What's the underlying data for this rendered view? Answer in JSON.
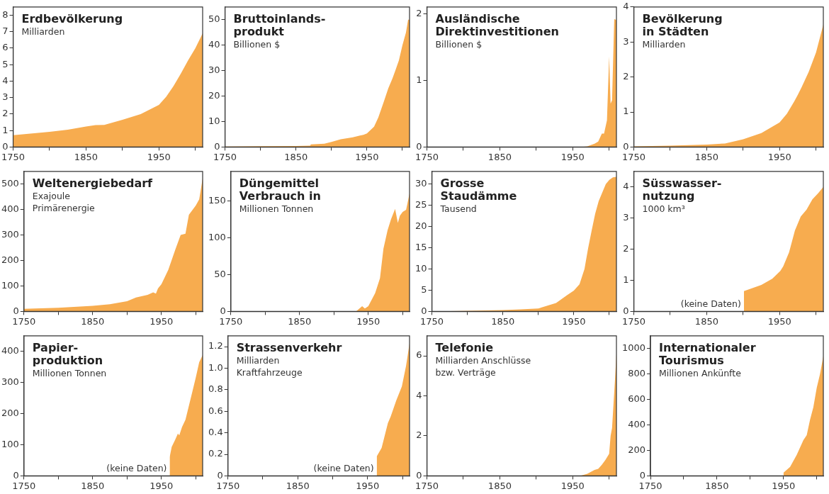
{
  "chart_data": [
    {
      "type": "area",
      "title": "Erdbevölkerung",
      "subtitle": "Milliarden",
      "xlim": [
        1750,
        2010
      ],
      "xticks": [
        1750,
        {
          "value": 1800,
          "label": null
        },
        1850,
        {
          "value": 1900,
          "label": null
        },
        1950,
        {
          "value": 2000,
          "label": null
        }
      ],
      "ylim": [
        0,
        8.5
      ],
      "yticks": [
        0,
        1,
        2,
        3,
        4,
        5,
        6,
        7,
        8
      ],
      "series": [
        {
          "color": "#f7ac4f",
          "x": [
            1750,
            1800,
            1825,
            1850,
            1863,
            1875,
            1900,
            1925,
            1950,
            1960,
            1970,
            1980,
            1990,
            2000,
            2010
          ],
          "values": [
            0.72,
            0.92,
            1.05,
            1.24,
            1.33,
            1.34,
            1.65,
            2.0,
            2.55,
            3.05,
            3.7,
            4.45,
            5.25,
            6.0,
            6.9
          ]
        }
      ]
    },
    {
      "type": "area",
      "title": "Bruttoinlands-\nprodukt",
      "subtitle": "Billionen $",
      "xlim": [
        1750,
        2010
      ],
      "xticks": [
        1750,
        {
          "value": 1800,
          "label": null
        },
        1850,
        {
          "value": 1900,
          "label": null
        },
        1950,
        {
          "value": 2000,
          "label": null
        }
      ],
      "ylim": [
        0,
        55
      ],
      "yticks": [
        0,
        10,
        20,
        30,
        40,
        50
      ],
      "series": [
        {
          "color": "#f7ac4f",
          "x": [
            1750,
            1800,
            1850,
            1870,
            1871,
            1890,
            1900,
            1913,
            1930,
            1945,
            1950,
            1960,
            1966,
            1974,
            1980,
            1986,
            1990,
            1995,
            2000,
            2005,
            2008,
            2010
          ],
          "values": [
            0.2,
            0.3,
            0.4,
            0.5,
            1.0,
            1.3,
            2.0,
            3.0,
            3.8,
            4.8,
            5.3,
            8,
            11.6,
            18,
            23,
            27,
            30,
            34,
            40,
            45,
            50,
            50
          ]
        }
      ]
    },
    {
      "type": "area",
      "title": "Ausländische\nDirektinvestitionen",
      "subtitle": "Billionen $",
      "xlim": [
        1750,
        2010
      ],
      "xticks": [
        1750,
        {
          "value": 1800,
          "label": null
        },
        1850,
        {
          "value": 1900,
          "label": null
        },
        1950,
        {
          "value": 2000,
          "label": null
        }
      ],
      "ylim": [
        0,
        2.1
      ],
      "yticks": [
        0,
        1,
        2
      ],
      "series": [
        {
          "color": "#f7ac4f",
          "x": [
            1750,
            1960,
            1970,
            1980,
            1985,
            1990,
            1993,
            1997,
            2000,
            2002,
            2004,
            2007,
            2010
          ],
          "values": [
            0,
            0,
            0.01,
            0.05,
            0.08,
            0.2,
            0.2,
            0.4,
            1.36,
            0.65,
            0.7,
            1.92,
            1.9
          ]
        }
      ]
    },
    {
      "type": "area",
      "title": "Bevölkerung\nin Städten",
      "subtitle": "Milliarden",
      "xlim": [
        1750,
        2010
      ],
      "xticks": [
        1750,
        {
          "value": 1800,
          "label": null
        },
        1850,
        {
          "value": 1900,
          "label": null
        },
        1950,
        {
          "value": 2000,
          "label": null
        }
      ],
      "ylim": [
        0,
        4
      ],
      "yticks": [
        0,
        1,
        2,
        3,
        4
      ],
      "series": [
        {
          "color": "#f7ac4f",
          "x": [
            1750,
            1800,
            1850,
            1875,
            1900,
            1925,
            1950,
            1960,
            1970,
            1975,
            1980,
            1990,
            2000,
            2010
          ],
          "values": [
            0.02,
            0.04,
            0.07,
            0.1,
            0.22,
            0.4,
            0.7,
            0.95,
            1.3,
            1.49,
            1.7,
            2.15,
            2.7,
            3.5
          ]
        }
      ]
    },
    {
      "type": "area",
      "title": "Weltenergiebedarf",
      "subtitle": "Exajoule\nPrimärenergie",
      "xlim": [
        1750,
        2010
      ],
      "xticks": [
        1750,
        {
          "value": 1800,
          "label": null
        },
        1850,
        {
          "value": 1900,
          "label": null
        },
        1950,
        {
          "value": 2000,
          "label": null
        }
      ],
      "ylim": [
        0,
        550
      ],
      "yticks": [
        0,
        100,
        200,
        300,
        400,
        500
      ],
      "series": [
        {
          "color": "#f7ac4f",
          "x": [
            1750,
            1800,
            1850,
            1875,
            1900,
            1913,
            1930,
            1938,
            1942,
            1945,
            1950,
            1960,
            1970,
            1978,
            1985,
            1990,
            2000,
            2005,
            2010
          ],
          "values": [
            10,
            14,
            22,
            28,
            40,
            55,
            65,
            75,
            70,
            90,
            107,
            163,
            241,
            300,
            305,
            380,
            416,
            440,
            522
          ]
        }
      ]
    },
    {
      "type": "area",
      "title": "Düngemittel\nVerbrauch in",
      "subtitle": "Millionen Tonnen",
      "xlim": [
        1750,
        2010
      ],
      "xticks": [
        1750,
        {
          "value": 1800,
          "label": null
        },
        1850,
        {
          "value": 1900,
          "label": null
        },
        1950,
        {
          "value": 2000,
          "label": null
        }
      ],
      "ylim": [
        0,
        190
      ],
      "yticks": [
        0,
        50,
        100,
        150
      ],
      "series": [
        {
          "color": "#f7ac4f",
          "x": [
            1750,
            1932,
            1941,
            1945,
            1950,
            1960,
            1967,
            1972,
            1978,
            1983,
            1989,
            1993,
            1996,
            2000,
            2005,
            2010
          ],
          "values": [
            0,
            0,
            7,
            4,
            7,
            25,
            45,
            85,
            110,
            125,
            139,
            120,
            130,
            135,
            138,
            160
          ]
        }
      ]
    },
    {
      "type": "area",
      "title": "Grosse\nStaudämme",
      "subtitle": "Tausend",
      "xlim": [
        1750,
        2010
      ],
      "xticks": [
        1750,
        {
          "value": 1800,
          "label": null
        },
        1850,
        {
          "value": 1900,
          "label": null
        },
        1950,
        {
          "value": 2000,
          "label": null
        }
      ],
      "ylim": [
        0,
        33
      ],
      "yticks": [
        0,
        5,
        10,
        15,
        20,
        25,
        30
      ],
      "series": [
        {
          "color": "#f7ac4f",
          "x": [
            1750,
            1850,
            1875,
            1900,
            1925,
            1940,
            1950,
            1958,
            1965,
            1970,
            1975,
            1980,
            1985,
            1990,
            1995,
            2000,
            2005,
            2010
          ],
          "values": [
            0,
            0.3,
            0.5,
            0.7,
            2,
            3.8,
            4.9,
            6.4,
            10,
            14.8,
            19,
            23,
            26,
            28,
            30,
            31,
            31.6,
            31.7
          ]
        }
      ]
    },
    {
      "type": "area",
      "title": "Süsswasser-\nnutzung",
      "subtitle": "1000 km³",
      "annotations": [
        "(keine Daten)"
      ],
      "xlim": [
        1750,
        2010
      ],
      "xticks": [
        1750,
        {
          "value": 1800,
          "label": null
        },
        1850,
        {
          "value": 1900,
          "label": null
        },
        1950,
        {
          "value": 2000,
          "label": null
        }
      ],
      "ylim": [
        0,
        4.5
      ],
      "yticks": [
        0,
        1,
        2,
        3,
        4
      ],
      "series": [
        {
          "color": "#f7ac4f",
          "x": [
            1901,
            1925,
            1940,
            1951,
            1955,
            1963,
            1971,
            1979,
            1987,
            1995,
            2003,
            2010
          ],
          "values": [
            0.65,
            0.85,
            1.05,
            1.3,
            1.45,
            1.9,
            2.6,
            3.05,
            3.27,
            3.6,
            3.8,
            4.0
          ]
        }
      ]
    },
    {
      "type": "area",
      "title": "Papier-\nproduktion",
      "subtitle": "Millionen Tonnen",
      "annotations": [
        "(keine Daten)"
      ],
      "xlim": [
        1750,
        2010
      ],
      "xticks": [
        1750,
        {
          "value": 1800,
          "label": null
        },
        1850,
        {
          "value": 1900,
          "label": null
        },
        1950,
        {
          "value": 2000,
          "label": null
        }
      ],
      "ylim": [
        0,
        450
      ],
      "yticks": [
        0,
        100,
        200,
        300,
        400
      ],
      "series": [
        {
          "color": "#f7ac4f",
          "x": [
            1962,
            1965,
            1970,
            1974,
            1976,
            1980,
            1985,
            1990,
            1995,
            2000,
            2005,
            2010
          ],
          "values": [
            60,
            93,
            116,
            136,
            130,
            157,
            180,
            225,
            270,
            316,
            365,
            388
          ]
        }
      ]
    },
    {
      "type": "area",
      "title": "Strassenverkehr",
      "subtitle": "Milliarden\nKraftfahrzeuge",
      "annotations": [
        "(keine Daten)"
      ],
      "xlim": [
        1750,
        2010
      ],
      "xticks": [
        1750,
        {
          "value": 1800,
          "label": null
        },
        1850,
        {
          "value": 1900,
          "label": null
        },
        1950,
        {
          "value": 2000,
          "label": null
        }
      ],
      "ylim": [
        0,
        1.3
      ],
      "yticks": [
        0,
        0.2,
        0.4,
        0.6,
        0.8,
        {
          "value": 1,
          "label": "1.0"
        },
        1.2
      ],
      "series": [
        {
          "color": "#f7ac4f",
          "x": [
            1963,
            1970,
            1979,
            1983,
            1991,
            1999,
            2005,
            2010
          ],
          "values": [
            0.18,
            0.26,
            0.49,
            0.55,
            0.7,
            0.83,
            1.02,
            1.23
          ]
        }
      ]
    },
    {
      "type": "area",
      "title": "Telefonie",
      "subtitle": "Milliarden Anschlüsse\nbzw. Verträge",
      "xlim": [
        1750,
        2010
      ],
      "xticks": [
        1750,
        {
          "value": 1800,
          "label": null
        },
        1850,
        {
          "value": 1900,
          "label": null
        },
        1950,
        {
          "value": 2000,
          "label": null
        }
      ],
      "ylim": [
        0,
        7
      ],
      "yticks": [
        0,
        2,
        4,
        6
      ],
      "series": [
        {
          "color": "#f7ac4f",
          "x": [
            1960,
            1965,
            1970,
            1980,
            1985,
            1990,
            1995,
            2000,
            2002,
            2004,
            2006,
            2008,
            2010
          ],
          "values": [
            0,
            0.05,
            0.1,
            0.3,
            0.35,
            0.55,
            0.8,
            1.1,
            2.0,
            2.4,
            3.6,
            4.8,
            6.1
          ]
        }
      ]
    },
    {
      "type": "area",
      "title": "Internationaler\nTourismus",
      "subtitle": "Millionen Ankünfte",
      "xlim": [
        1750,
        2010
      ],
      "xticks": [
        1750,
        {
          "value": 1800,
          "label": null
        },
        1850,
        {
          "value": 1900,
          "label": null
        },
        1950,
        {
          "value": 2000,
          "label": null
        }
      ],
      "ylim": [
        0,
        1100
      ],
      "yticks": [
        0,
        200,
        400,
        600,
        800,
        1000
      ],
      "series": [
        {
          "color": "#f7ac4f",
          "x": [
            1950,
            1960,
            1970,
            1980,
            1985,
            1990,
            1995,
            2000,
            2005,
            2010
          ],
          "values": [
            25,
            70,
            165,
            280,
            320,
            440,
            540,
            690,
            800,
            940
          ]
        }
      ]
    }
  ]
}
